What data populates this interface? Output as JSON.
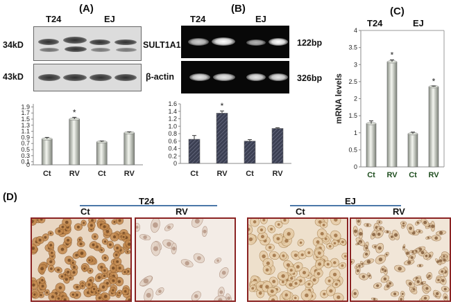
{
  "panels": {
    "a": {
      "label": "(A)",
      "groups": [
        "T24",
        "EJ"
      ],
      "blot_rows": [
        {
          "mw": "34kD",
          "name": "SULT1A1"
        },
        {
          "mw": "43kD",
          "name": "β-actin"
        }
      ]
    },
    "b": {
      "label": "(B)",
      "groups": [
        "T24",
        "EJ"
      ],
      "gel_rows": [
        {
          "size": "122bp"
        },
        {
          "size": "326bp"
        }
      ]
    },
    "c": {
      "label": "(C)",
      "groups": [
        "T24",
        "EJ"
      ]
    },
    "d": {
      "label": "(D)",
      "groups": [
        {
          "name": "T24",
          "left": "Ct",
          "right": "RV"
        },
        {
          "name": "EJ",
          "left": "Ct",
          "right": "RV"
        }
      ]
    }
  },
  "chart_data": [
    {
      "id": "a-bar",
      "type": "bar",
      "categories": [
        "Ct",
        "RV",
        "Ct",
        "RV"
      ],
      "values": [
        0.85,
        1.5,
        0.75,
        1.05
      ],
      "errors": [
        0.05,
        0.06,
        0.03,
        0.03
      ],
      "ticks": [
        "0",
        "0.1",
        "0.3",
        "0.5",
        "0.7",
        "0.9",
        "1.1",
        "1.3",
        "1.5",
        "1.7",
        "1.9"
      ],
      "tick_values": [
        0,
        0.1,
        0.3,
        0.5,
        0.7,
        0.9,
        1.1,
        1.3,
        1.5,
        1.7,
        1.9
      ],
      "ylim": [
        0,
        2.0
      ],
      "significance": [
        "",
        "*",
        "",
        ""
      ],
      "style": "cylinder-gray"
    },
    {
      "id": "b-bar",
      "type": "bar",
      "categories": [
        "Ct",
        "RV",
        "Ct",
        "RV"
      ],
      "values": [
        0.65,
        1.35,
        0.6,
        0.94
      ],
      "errors": [
        0.1,
        0.06,
        0.04,
        0.02
      ],
      "ticks": [
        "0",
        "0.2",
        "0.4",
        "0.6",
        "0.8",
        "1.0",
        "1.2",
        "1.4",
        "1.6"
      ],
      "tick_values": [
        0,
        0.2,
        0.4,
        0.6,
        0.8,
        1.0,
        1.2,
        1.4,
        1.6
      ],
      "ylim": [
        0,
        1.6
      ],
      "significance": [
        "",
        "*",
        "",
        ""
      ],
      "style": "hatched-dark"
    },
    {
      "id": "c-bar",
      "type": "bar",
      "categories": [
        "Ct",
        "RV",
        "Ct",
        "RV"
      ],
      "values": [
        1.27,
        3.08,
        0.97,
        2.35
      ],
      "errors": [
        0.08,
        0.06,
        0.05,
        0.02
      ],
      "ticks": [
        "0",
        "0.5",
        "1",
        "1.5",
        "2",
        "2.5",
        "3",
        "3.5",
        "4"
      ],
      "tick_values": [
        0,
        0.5,
        1,
        1.5,
        2,
        2.5,
        3,
        3.5,
        4
      ],
      "ylim": [
        0,
        4
      ],
      "ylabel": "mRNA  levels",
      "significance": [
        "",
        "*",
        "",
        "*"
      ],
      "style": "cylinder-gray"
    }
  ]
}
